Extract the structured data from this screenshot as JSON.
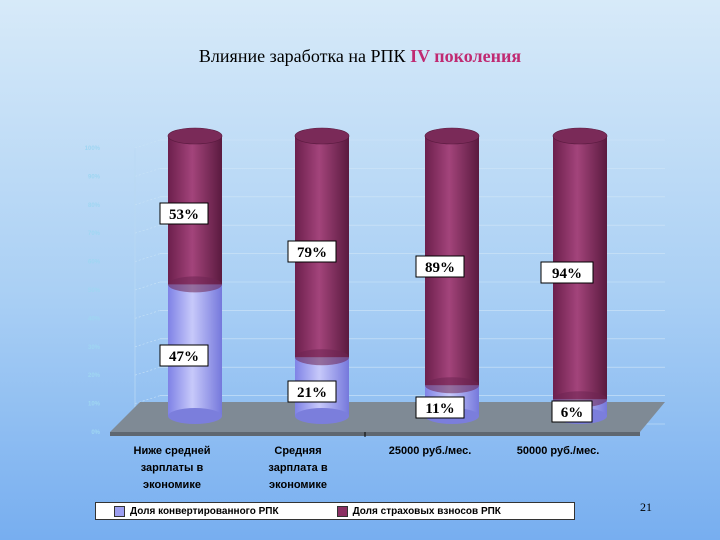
{
  "slide": {
    "title_main": "Влияние заработка на РПК ",
    "title_accent": "IV поколения",
    "slide_number": "21"
  },
  "colors": {
    "converted": "#9c9ef0",
    "insurance": "#8a2f62",
    "floor": "#7f8a95"
  },
  "chart_data": {
    "type": "bar",
    "stacked": true,
    "percent": true,
    "title": "Влияние заработка на РПК IV поколения",
    "categories": [
      [
        "Ниже средней",
        "зарплаты в",
        "экономике"
      ],
      [
        "Средняя",
        "зарплата в",
        "экономике"
      ],
      [
        "25000 руб./мес."
      ],
      [
        "50000 руб./мес."
      ]
    ],
    "series": [
      {
        "name": "Доля конвертированного РПК",
        "values": [
          47,
          21,
          11,
          6
        ],
        "labels": [
          "47%",
          "21%",
          "11%",
          "6%"
        ],
        "color": "#9c9ef0"
      },
      {
        "name": "Доля страховых взносов РПК",
        "values": [
          53,
          79,
          89,
          94
        ],
        "labels": [
          "53%",
          "79%",
          "89%",
          "94%"
        ],
        "color": "#8a2f62"
      }
    ],
    "ylim": [
      0,
      100
    ],
    "y_ticks": [
      "0%",
      "10%",
      "20%",
      "30%",
      "40%",
      "50%",
      "60%",
      "70%",
      "80%",
      "90%",
      "100%"
    ],
    "grid": true,
    "legend": "bottom"
  }
}
